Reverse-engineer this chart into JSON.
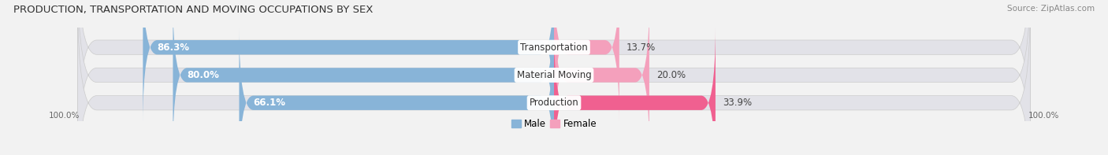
{
  "title": "PRODUCTION, TRANSPORTATION AND MOVING OCCUPATIONS BY SEX",
  "source": "Source: ZipAtlas.com",
  "categories": [
    "Transportation",
    "Material Moving",
    "Production"
  ],
  "male_values": [
    86.3,
    80.0,
    66.1
  ],
  "female_values": [
    13.7,
    20.0,
    33.9
  ],
  "male_color": "#88b4d8",
  "female_colors": [
    "#f4a0bc",
    "#f4a0bc",
    "#f06090"
  ],
  "bar_height": 0.52,
  "background_color": "#f2f2f2",
  "bar_bg_color": "#e2e2e8",
  "title_fontsize": 9.5,
  "label_fontsize": 8.5,
  "source_fontsize": 7.5,
  "legend_male_color": "#88b4d8",
  "legend_female_color": "#f4a0bc",
  "tick_label_color": "#666666",
  "category_label_color": "#333333",
  "male_pct_color": "white",
  "female_pct_color": "#444444"
}
